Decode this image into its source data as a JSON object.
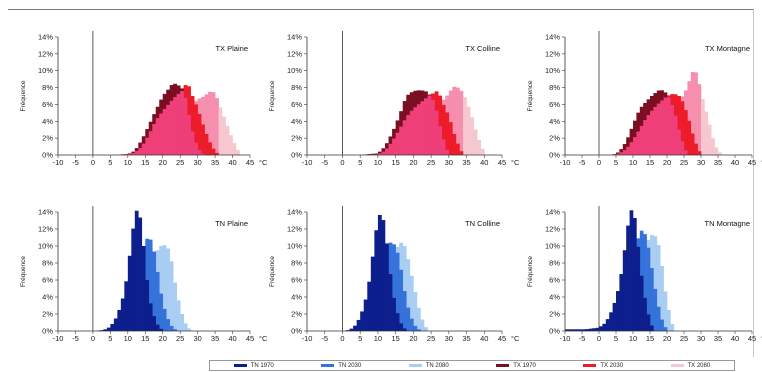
{
  "colors": {
    "TN 1970": "#0d1f8c",
    "TN 2030": "#3573db",
    "TN 2080": "#a9cdf3",
    "TX 1970": "#7a0f22",
    "TX 2030": "#ee1b2a",
    "TX 2080": "#f7c7d0",
    "TX 2030 overlap": "#ef3f78",
    "TX 2080 overlap": "#f58fad"
  },
  "legend": [
    {
      "label": "TN 1970",
      "color": "#0d1f8c"
    },
    {
      "label": "TN 2030",
      "color": "#3573db"
    },
    {
      "label": "TN 2080",
      "color": "#a9cdf3"
    },
    {
      "label": "TX 1970",
      "color": "#7a0f22"
    },
    {
      "label": "TX 2030",
      "color": "#ee1b2a"
    },
    {
      "label": "TX 2080",
      "color": "#f7c7d0"
    }
  ],
  "chart_data": [
    {
      "type": "area",
      "title": "TX Plaine",
      "xlabel": "°C",
      "ylabel": "Fréquence",
      "xlim": [
        -10,
        45
      ],
      "ylim": [
        0,
        14
      ],
      "xticks": [
        -10,
        -5,
        0,
        5,
        10,
        15,
        20,
        25,
        30,
        35,
        40,
        45
      ],
      "yticks": [
        "0%",
        "2%",
        "4%",
        "6%",
        "8%",
        "10%",
        "12%",
        "14%"
      ],
      "series": [
        {
          "name": "TX 1970",
          "x": [
            0,
            5,
            10,
            12,
            14,
            16,
            18,
            20,
            22,
            23,
            24,
            25,
            26,
            27,
            28,
            30,
            32
          ],
          "values": [
            0,
            0,
            0.1,
            0.5,
            1.8,
            3.5,
            5.3,
            7.0,
            8.0,
            8.6,
            8.3,
            8.2,
            7.6,
            6.0,
            3.5,
            0.8,
            0
          ]
        },
        {
          "name": "TX 2030",
          "x": [
            0,
            5,
            10,
            12,
            14,
            16,
            18,
            20,
            22,
            24,
            25,
            26,
            27,
            28,
            30,
            32,
            34,
            36
          ],
          "values": [
            0,
            0,
            0.1,
            0.3,
            1.0,
            2.4,
            4.1,
            5.2,
            6.2,
            7.1,
            7.4,
            7.8,
            8.8,
            7.5,
            5.5,
            3.0,
            1.0,
            0
          ]
        },
        {
          "name": "TX 2080",
          "x": [
            0,
            5,
            10,
            14,
            18,
            20,
            22,
            24,
            26,
            28,
            30,
            32,
            33,
            34,
            35,
            36,
            38,
            40,
            42
          ],
          "values": [
            0,
            0,
            0.1,
            0.3,
            1.0,
            1.8,
            2.8,
            3.8,
            4.8,
            5.8,
            6.6,
            7.0,
            7.4,
            7.6,
            7.3,
            6.2,
            4.0,
            1.8,
            0.2
          ]
        }
      ]
    },
    {
      "type": "area",
      "title": "TX Colline",
      "xlabel": "°C",
      "ylabel": "Fréquence",
      "xlim": [
        -10,
        45
      ],
      "ylim": [
        0,
        14
      ],
      "xticks": [
        -10,
        -5,
        0,
        5,
        10,
        15,
        20,
        25,
        30,
        35,
        40,
        45
      ],
      "yticks": [
        "0%",
        "2%",
        "4%",
        "6%",
        "8%",
        "10%",
        "12%",
        "14%"
      ],
      "series": [
        {
          "name": "TX 1970",
          "x": [
            0,
            5,
            10,
            12,
            14,
            16,
            18,
            20,
            22,
            24,
            26,
            28,
            30
          ],
          "values": [
            0,
            0,
            0.2,
            1.0,
            2.6,
            4.6,
            7.0,
            7.6,
            7.7,
            7.5,
            6.2,
            2.5,
            0
          ]
        },
        {
          "name": "TX 2030",
          "x": [
            0,
            5,
            10,
            12,
            14,
            16,
            18,
            20,
            22,
            24,
            25,
            26,
            27,
            28,
            30,
            32,
            34
          ],
          "values": [
            0,
            0,
            0.1,
            0.5,
            1.6,
            3.0,
            4.5,
            5.5,
            6.2,
            6.9,
            7.2,
            7.4,
            7.7,
            6.4,
            4.6,
            1.8,
            0
          ]
        },
        {
          "name": "TX 2080",
          "x": [
            0,
            5,
            10,
            14,
            18,
            20,
            22,
            24,
            26,
            28,
            30,
            31,
            32,
            33,
            34,
            36,
            38,
            40
          ],
          "values": [
            0,
            0,
            0.2,
            0.6,
            1.4,
            2.3,
            3.4,
            4.4,
            5.4,
            6.3,
            7.3,
            8.0,
            8.2,
            7.8,
            7.4,
            5.2,
            2.3,
            0.2
          ]
        }
      ]
    },
    {
      "type": "area",
      "title": "TX Montagne",
      "xlabel": "°C",
      "ylabel": "Fréquence",
      "xlim": [
        -10,
        45
      ],
      "ylim": [
        0,
        14
      ],
      "xticks": [
        -10,
        -5,
        0,
        5,
        10,
        15,
        20,
        25,
        30,
        35,
        40,
        45
      ],
      "yticks": [
        "0%",
        "2%",
        "4%",
        "6%",
        "8%",
        "10%",
        "12%",
        "14%"
      ],
      "series": [
        {
          "name": "TX 1970",
          "x": [
            0,
            4,
            6,
            8,
            10,
            12,
            14,
            16,
            18,
            20,
            22,
            24,
            26
          ],
          "values": [
            0,
            0,
            0.4,
            1.6,
            3.6,
            5.5,
            6.4,
            7.2,
            7.8,
            7.3,
            5.5,
            2.2,
            0
          ]
        },
        {
          "name": "TX 2030",
          "x": [
            0,
            4,
            6,
            8,
            10,
            12,
            14,
            16,
            18,
            20,
            22,
            24,
            26,
            28,
            30
          ],
          "values": [
            0,
            0,
            0.2,
            0.7,
            1.8,
            3.1,
            4.5,
            5.5,
            6.3,
            7.0,
            7.3,
            6.9,
            4.8,
            1.8,
            0
          ]
        },
        {
          "name": "TX 2080",
          "x": [
            0,
            6,
            10,
            14,
            16,
            18,
            20,
            22,
            24,
            26,
            27,
            28,
            29,
            30,
            32,
            34,
            36
          ],
          "values": [
            0,
            0,
            0.3,
            1.0,
            1.9,
            2.9,
            4.1,
            5.3,
            6.6,
            8.0,
            9.5,
            10.2,
            9.4,
            7.4,
            4.4,
            1.2,
            0
          ]
        }
      ]
    },
    {
      "type": "area",
      "title": "TN Plaine",
      "xlabel": "°C",
      "ylabel": "Fréquence",
      "xlim": [
        -10,
        45
      ],
      "ylim": [
        0,
        14
      ],
      "xticks": [
        -10,
        -5,
        0,
        5,
        10,
        15,
        20,
        25,
        30,
        35,
        40,
        45
      ],
      "yticks": [
        "0%",
        "2%",
        "4%",
        "6%",
        "8%",
        "10%",
        "12%",
        "14%"
      ],
      "series": [
        {
          "name": "TN 1970",
          "x": [
            0,
            3,
            5,
            7,
            9,
            10,
            11,
            12,
            13,
            14,
            15,
            16,
            18,
            20
          ],
          "values": [
            0,
            0.1,
            0.5,
            1.8,
            4.5,
            7.2,
            10.5,
            13.6,
            14.7,
            12.0,
            8.0,
            4.0,
            1.0,
            0
          ]
        },
        {
          "name": "TN 2030",
          "x": [
            0,
            5,
            7,
            9,
            11,
            13,
            14,
            15,
            16,
            17,
            18,
            19,
            20,
            22,
            24
          ],
          "values": [
            0,
            0.2,
            0.9,
            2.2,
            4.4,
            7.2,
            9.0,
            10.6,
            11.1,
            10.4,
            8.3,
            5.6,
            3.2,
            0.8,
            0
          ]
        },
        {
          "name": "TN 2080",
          "x": [
            0,
            6,
            9,
            12,
            15,
            17,
            18,
            19,
            20,
            21,
            22,
            23,
            24,
            26,
            28
          ],
          "values": [
            0,
            0.2,
            0.8,
            2.5,
            5.6,
            8.1,
            9.2,
            9.8,
            10.2,
            10.0,
            9.4,
            7.0,
            4.4,
            1.2,
            0
          ]
        }
      ]
    },
    {
      "type": "area",
      "title": "TN Colline",
      "xlabel": "°C",
      "ylabel": "Fréquence",
      "xlim": [
        -10,
        45
      ],
      "ylim": [
        0,
        14
      ],
      "xticks": [
        -10,
        -5,
        0,
        5,
        10,
        15,
        20,
        25,
        30,
        35,
        40,
        45
      ],
      "yticks": [
        "0%",
        "2%",
        "4%",
        "6%",
        "8%",
        "10%",
        "12%",
        "14%"
      ],
      "series": [
        {
          "name": "TN 1970",
          "x": [
            0,
            2,
            4,
            6,
            7,
            8,
            9,
            10,
            11,
            12,
            13,
            14,
            16,
            18
          ],
          "values": [
            0,
            0.1,
            0.8,
            2.8,
            4.6,
            7.0,
            10.5,
            13.2,
            14.1,
            12.0,
            8.6,
            4.8,
            1.2,
            0
          ]
        },
        {
          "name": "TN 2030",
          "x": [
            0,
            4,
            6,
            8,
            10,
            11,
            12,
            13,
            14,
            15,
            16,
            17,
            18,
            20,
            22
          ],
          "values": [
            0,
            0.3,
            1.0,
            3.0,
            6.3,
            8.4,
            9.8,
            10.4,
            10.4,
            10.0,
            8.4,
            6.0,
            3.4,
            0.8,
            0
          ]
        },
        {
          "name": "TN 2080",
          "x": [
            0,
            6,
            8,
            10,
            12,
            14,
            15,
            16,
            17,
            18,
            19,
            20,
            22,
            24
          ],
          "values": [
            0,
            0.2,
            0.9,
            2.6,
            5.6,
            8.4,
            9.6,
            10.2,
            10.6,
            9.4,
            7.5,
            5.5,
            1.8,
            0
          ]
        }
      ]
    },
    {
      "type": "area",
      "title": "TN Montagne",
      "xlabel": "°C",
      "ylabel": "Fréquence",
      "xlim": [
        -10,
        45
      ],
      "ylim": [
        0,
        14
      ],
      "xticks": [
        -10,
        -5,
        0,
        5,
        10,
        15,
        20,
        25,
        30,
        35,
        40,
        45
      ],
      "yticks": [
        "0%",
        "2%",
        "4%",
        "6%",
        "8%",
        "10%",
        "12%",
        "14%"
      ],
      "series": [
        {
          "name": "TN 1970",
          "x": [
            -10,
            -4,
            0,
            2,
            4,
            6,
            7,
            8,
            9,
            10,
            11,
            12,
            14,
            16
          ],
          "values": [
            0.2,
            0.2,
            0.4,
            1.0,
            2.6,
            5.4,
            8.0,
            11.0,
            13.8,
            14.6,
            12.0,
            7.8,
            2.6,
            0
          ]
        },
        {
          "name": "TN 2030",
          "x": [
            -10,
            -4,
            0,
            4,
            6,
            8,
            10,
            11,
            12,
            13,
            14,
            15,
            16,
            18,
            20
          ],
          "values": [
            0.1,
            0.1,
            0.3,
            1.2,
            2.8,
            5.4,
            8.6,
            10.2,
            11.6,
            12.0,
            10.8,
            8.8,
            6.0,
            1.8,
            0
          ]
        },
        {
          "name": "TN 2080",
          "x": [
            -10,
            0,
            4,
            8,
            10,
            12,
            14,
            15,
            16,
            17,
            18,
            19,
            20,
            22
          ],
          "values": [
            0,
            0.1,
            0.6,
            2.8,
            5.0,
            7.6,
            10.2,
            11.2,
            11.4,
            10.9,
            9.3,
            6.0,
            3.3,
            0
          ]
        }
      ]
    }
  ]
}
